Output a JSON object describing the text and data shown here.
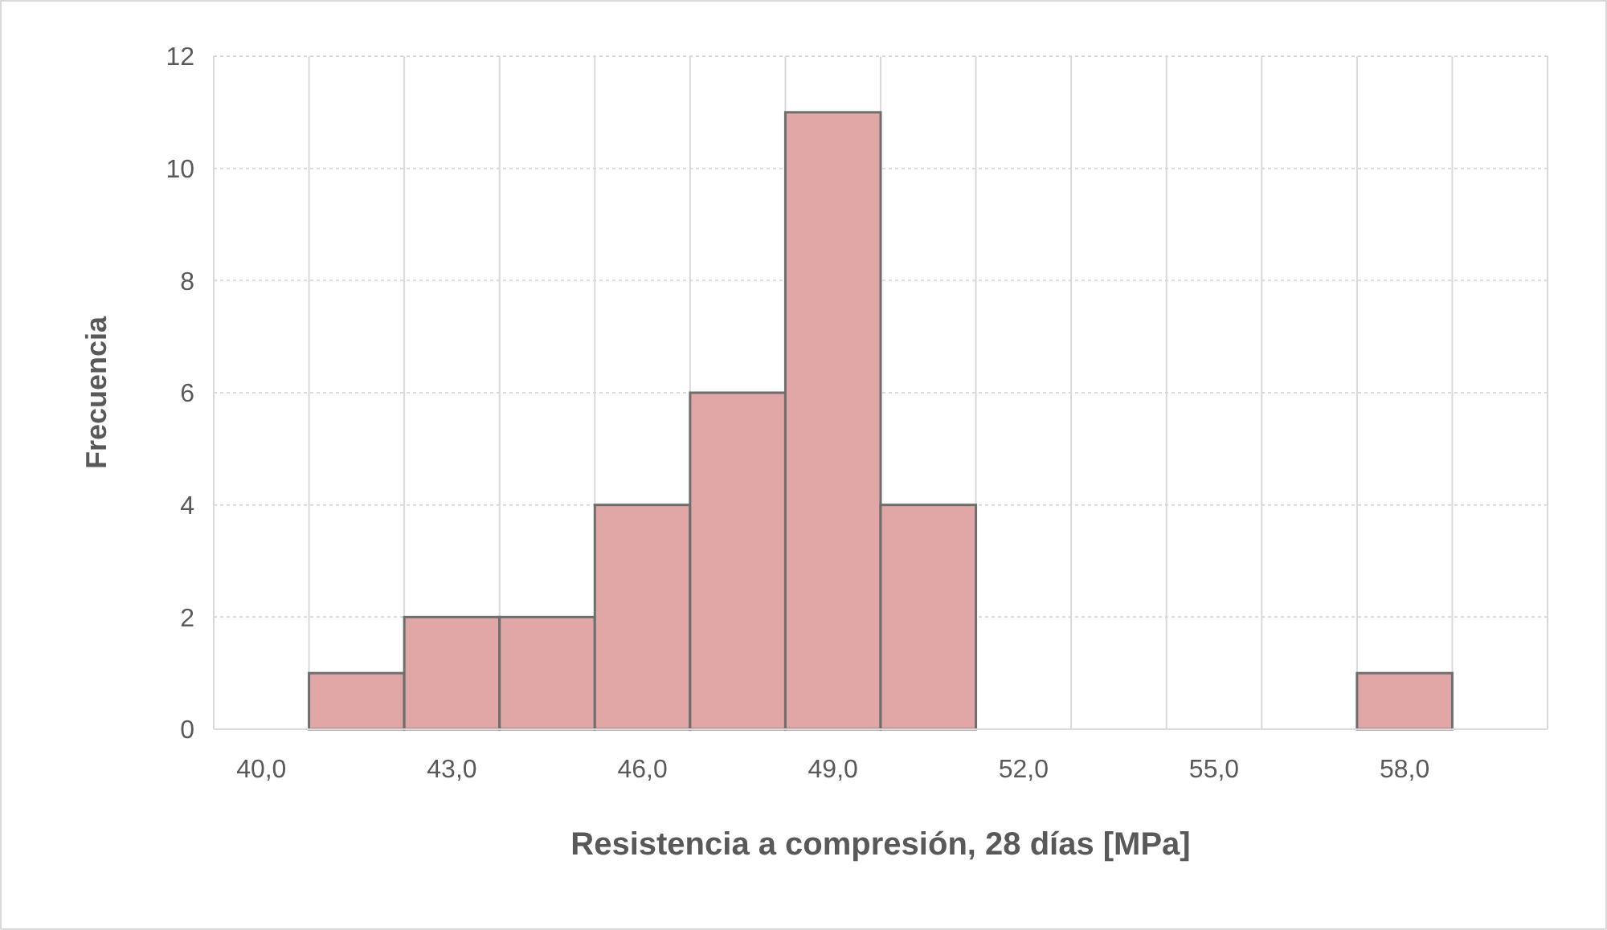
{
  "chart_data": {
    "type": "bar",
    "xlabel": "Resistencia a compresión, 28 días [MPa]",
    "ylabel": "Frecuencia",
    "categories": [
      "40,0",
      null,
      "43,0",
      null,
      "46,0",
      null,
      "49,0",
      null,
      "52,0",
      null,
      "55,0",
      null,
      "58,0",
      null
    ],
    "values": [
      0,
      1,
      2,
      2,
      4,
      6,
      11,
      4,
      0,
      0,
      0,
      0,
      1,
      0
    ],
    "color": "#e0a7a6",
    "ylim": [
      0,
      12
    ],
    "yticks": [
      0,
      2,
      4,
      6,
      8,
      10,
      12
    ],
    "grid": true
  }
}
